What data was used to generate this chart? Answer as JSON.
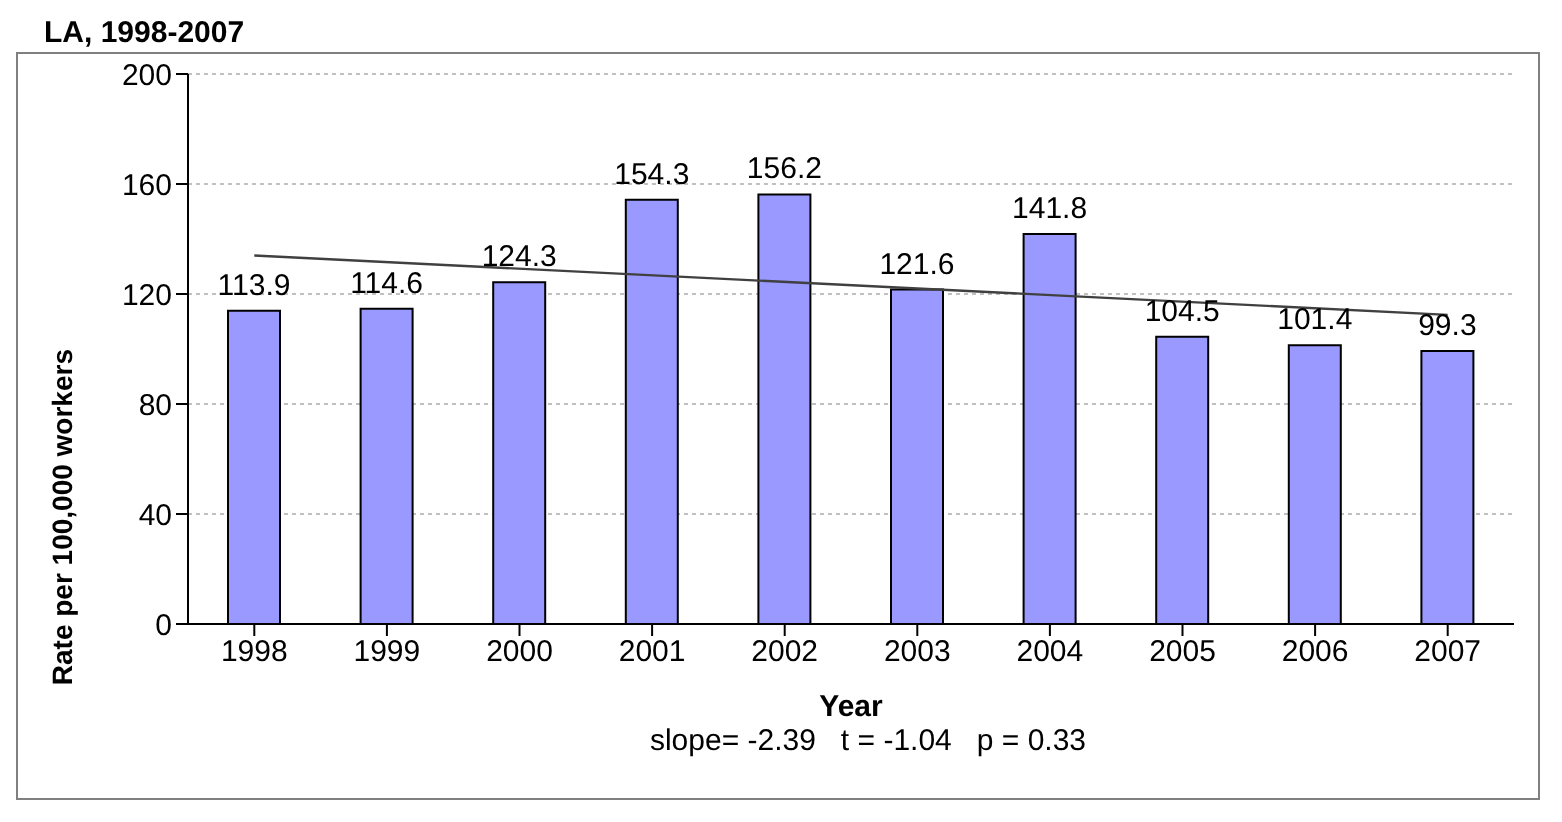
{
  "chart_data": {
    "type": "bar",
    "title": "LA, 1998-2007",
    "xlabel": "Year",
    "ylabel": "Rate per 100,000 workers",
    "categories": [
      "1998",
      "1999",
      "2000",
      "2001",
      "2002",
      "2003",
      "2004",
      "2005",
      "2006",
      "2007"
    ],
    "series": [
      {
        "color": "#9999ff",
        "values": [
          113.9,
          114.6,
          124.3,
          154.3,
          156.2,
          121.6,
          141.8,
          104.5,
          101.4,
          99.3
        ],
        "value_labels": [
          "113.9",
          "114.6",
          "124.3",
          "154.3",
          "156.2",
          "121.6",
          "141.8",
          "104.5",
          "101.4",
          "99.3"
        ]
      },
      {
        "type": "line",
        "color": "#404040",
        "values": [
          134.0,
          null,
          null,
          null,
          null,
          null,
          null,
          null,
          null,
          112.4
        ]
      }
    ],
    "ylim": [
      0,
      200
    ],
    "yticks": [
      0,
      40,
      80,
      120,
      160,
      200
    ],
    "grid": "y",
    "legend": false,
    "annotations": [
      "slope= -2.39   t = -1.04   p = 0.33"
    ]
  }
}
